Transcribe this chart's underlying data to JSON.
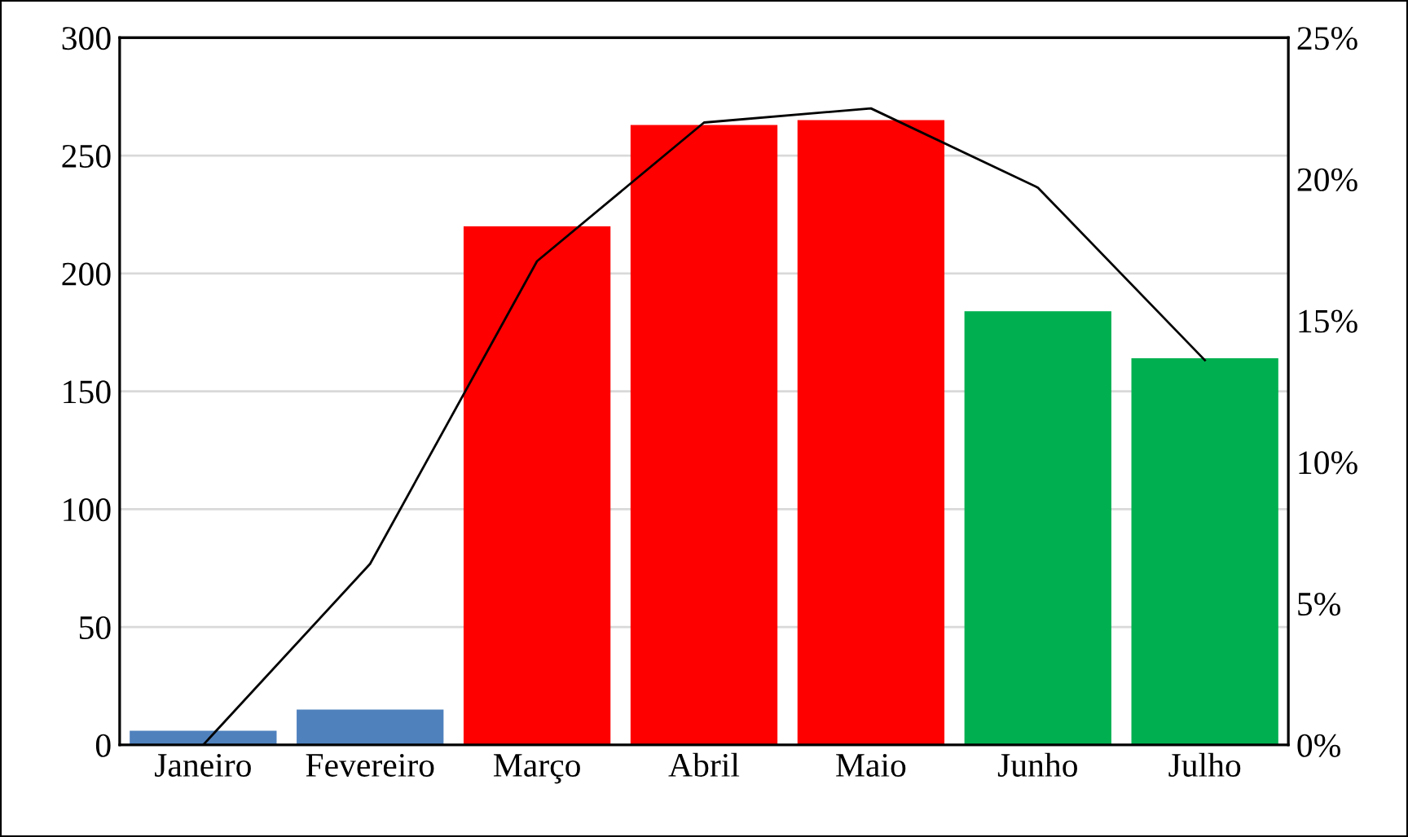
{
  "chart_data": {
    "type": "bar",
    "categories": [
      "Janeiro",
      "Fevereiro",
      "Março",
      "Abril",
      "Maio",
      "Junho",
      "Julho"
    ],
    "series": [
      {
        "colors": [
          "#4f81bd",
          "#4f81bd",
          "#ff0000",
          "#ff0000",
          "#ff0000",
          "#00b050",
          "#00b050"
        ],
        "values": [
          6,
          15,
          220,
          263,
          265,
          184,
          164
        ]
      },
      {
        "type": "line",
        "axis": "y2",
        "color": "#000000",
        "values": [
          0,
          6.4,
          17.1,
          22,
          22.5,
          19.7,
          13.6
        ]
      }
    ],
    "ylim": [
      0,
      300
    ],
    "yticks": [
      0,
      50,
      100,
      150,
      200,
      250,
      300
    ],
    "y2lim": [
      0,
      25
    ],
    "y2ticks": [
      {
        "value": 0,
        "label": "0%"
      },
      {
        "value": 5,
        "label": "5%"
      },
      {
        "value": 10,
        "label": "10%"
      },
      {
        "value": 15,
        "label": "15%"
      },
      {
        "value": 20,
        "label": "20%"
      },
      {
        "value": 25,
        "label": "25%"
      }
    ],
    "grid": "y",
    "legend": false,
    "marker": "none",
    "line_style": "solid"
  }
}
